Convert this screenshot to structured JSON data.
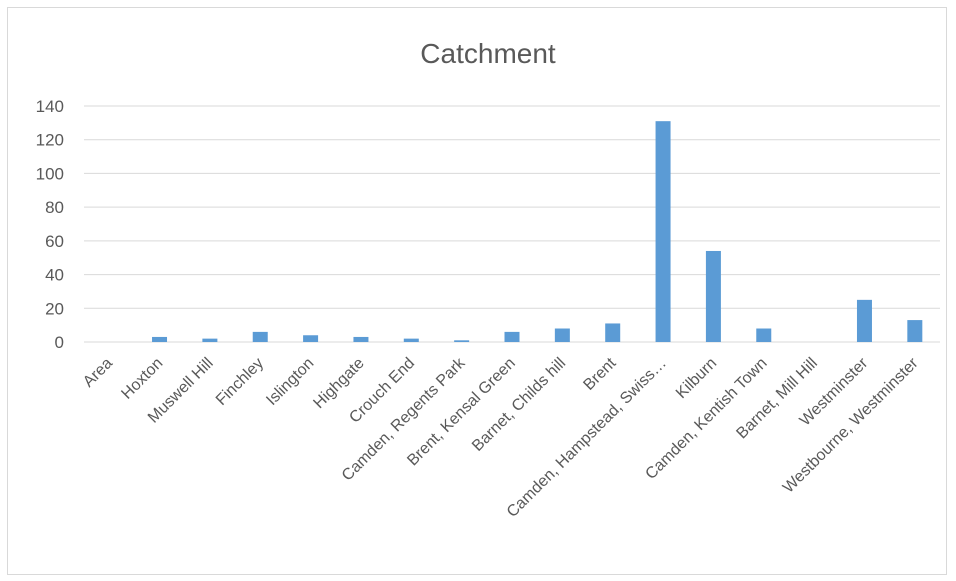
{
  "chart_data": {
    "type": "bar",
    "title": "Catchment",
    "xlabel": "",
    "ylabel": "",
    "ylim": [
      0,
      140
    ],
    "yticks": [
      0,
      20,
      40,
      60,
      80,
      100,
      120,
      140
    ],
    "grid": true,
    "legend": "none",
    "categories": [
      "Area",
      "Hoxton",
      "Muswell Hill",
      "Finchley",
      "Islington",
      "Highgate",
      "Crouch End",
      "Camden, Regents Park",
      "Brent, Kensal Green",
      "Barnet, Childs hill",
      "Brent",
      "Camden, Hampstead, Swiss…",
      "Kilburn",
      "Camden, Kentish Town",
      "Barnet, Mill Hill",
      "Westminster",
      "Westbourne, Westminster"
    ],
    "values": [
      0,
      3,
      2,
      6,
      4,
      3,
      2,
      1,
      6,
      8,
      11,
      131,
      54,
      8,
      0,
      25,
      13
    ],
    "colors": {
      "bar": "#5b9bd5",
      "grid": "#d9d9d9",
      "text": "#595959"
    }
  }
}
